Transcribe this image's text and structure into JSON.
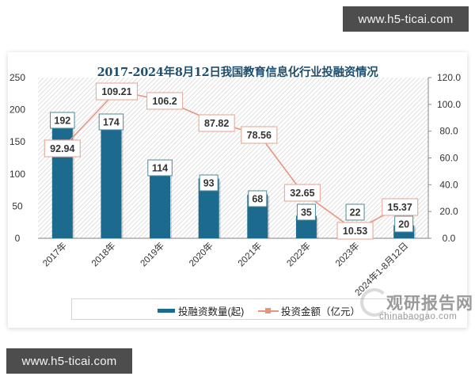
{
  "banners": {
    "top": "www.h5-ticai.com",
    "bottom": "www.h5-ticai.com"
  },
  "chart_data": {
    "type": "bar+line",
    "title": "2017-2024年8月12日我国教育信息化行业投融资情况",
    "categories": [
      "2017年",
      "2018年",
      "2019年",
      "2020年",
      "2021年",
      "2022年",
      "2023年",
      "2024年1-8月12日"
    ],
    "series": [
      {
        "name": "投融资数量(起)",
        "type": "bar",
        "axis": "left",
        "color": "#1d6a8f",
        "values": [
          192,
          174,
          114,
          93,
          68,
          35,
          22,
          20
        ]
      },
      {
        "name": "投资金额（亿元）",
        "type": "line",
        "axis": "right",
        "color": "#e8957e",
        "values": [
          92.94,
          109.21,
          106.2,
          87.82,
          78.56,
          32.65,
          10.53,
          15.37
        ]
      }
    ],
    "y_left": {
      "ticks": [
        "250",
        "200",
        "150",
        "100",
        "50",
        "0"
      ],
      "range": [
        0,
        250
      ]
    },
    "y_right": {
      "ticks": [
        "120.0",
        "100.0",
        "80.0",
        "60.0",
        "40.0",
        "20.0",
        "0.0"
      ],
      "range": [
        0,
        120
      ]
    },
    "legend_position": "bottom",
    "grid": false
  },
  "legend": {
    "bar_label": "投融资数量(起)",
    "line_label": "投资金额（亿元）"
  },
  "watermark": {
    "cn": "观研报告网",
    "en": "chinabaogao.com"
  }
}
